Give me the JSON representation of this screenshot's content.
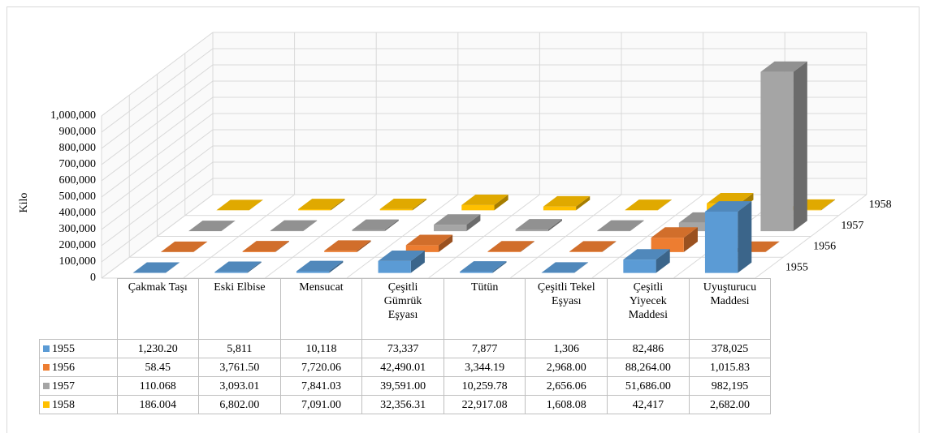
{
  "chart_data": {
    "type": "bar",
    "ylabel": "Kilo",
    "categories": [
      "Çakmak Taşı",
      "Eski Elbise",
      "Mensucat",
      "Çeşitli Gümrük Eşyası",
      "Tütün",
      "Çeşitli Tekel Eşyası",
      "Çeşitli Yiyecek Maddesi",
      "Uyuşturucu Maddesi"
    ],
    "series": [
      {
        "name": "1955",
        "color": "#5b9bd5",
        "values": [
          1230.2,
          5811,
          10118,
          73337,
          7877,
          1306,
          82486,
          378025
        ],
        "value_labels": [
          "1,230.20",
          "5,811",
          "10,118",
          "73,337",
          "7,877",
          "1,306",
          "82,486",
          "378,025"
        ]
      },
      {
        "name": "1956",
        "color": "#ed7d31",
        "values": [
          58.45,
          3761.5,
          7720.06,
          42490.01,
          3344.19,
          2968,
          88264,
          1015.83
        ],
        "value_labels": [
          "58.45",
          "3,761.50",
          "7,720.06",
          "42,490.01",
          "3,344.19",
          "2,968.00",
          "88,264.00",
          "1,015.83"
        ]
      },
      {
        "name": "1957",
        "color": "#a5a5a5",
        "values": [
          110.068,
          3093.01,
          7841.03,
          39591,
          10259.78,
          2656.06,
          51686,
          982195
        ],
        "value_labels": [
          "110.068",
          "3,093.01",
          "7,841.03",
          "39,591.00",
          "10,259.78",
          "2,656.06",
          "51,686.00",
          "982,195"
        ]
      },
      {
        "name": "1958",
        "color": "#ffc000",
        "values": [
          186.004,
          6802,
          7091,
          32356.31,
          22917.08,
          1608.08,
          42417,
          2682
        ],
        "value_labels": [
          "186.004",
          "6,802.00",
          "7,091.00",
          "32,356.31",
          "22,917.08",
          "1,608.08",
          "42,417",
          "2,682.00"
        ]
      }
    ],
    "ylim": [
      0,
      1000000
    ],
    "yticks": [
      0,
      {
        "value": 100000,
        "label": "100,000"
      },
      {
        "value": 200000,
        "label": "200,000"
      },
      {
        "value": 300000,
        "label": "300,000"
      },
      {
        "value": 400000,
        "label": "400,000"
      },
      {
        "value": 500000,
        "label": "500,000"
      },
      {
        "value": 600000,
        "label": "600,000"
      },
      {
        "value": 700000,
        "label": "700,000"
      },
      {
        "value": 800000,
        "label": "800,000"
      },
      {
        "value": 900000,
        "label": "900,000"
      },
      {
        "value": 1000000,
        "label": "1,000,000"
      }
    ],
    "grid": true
  }
}
